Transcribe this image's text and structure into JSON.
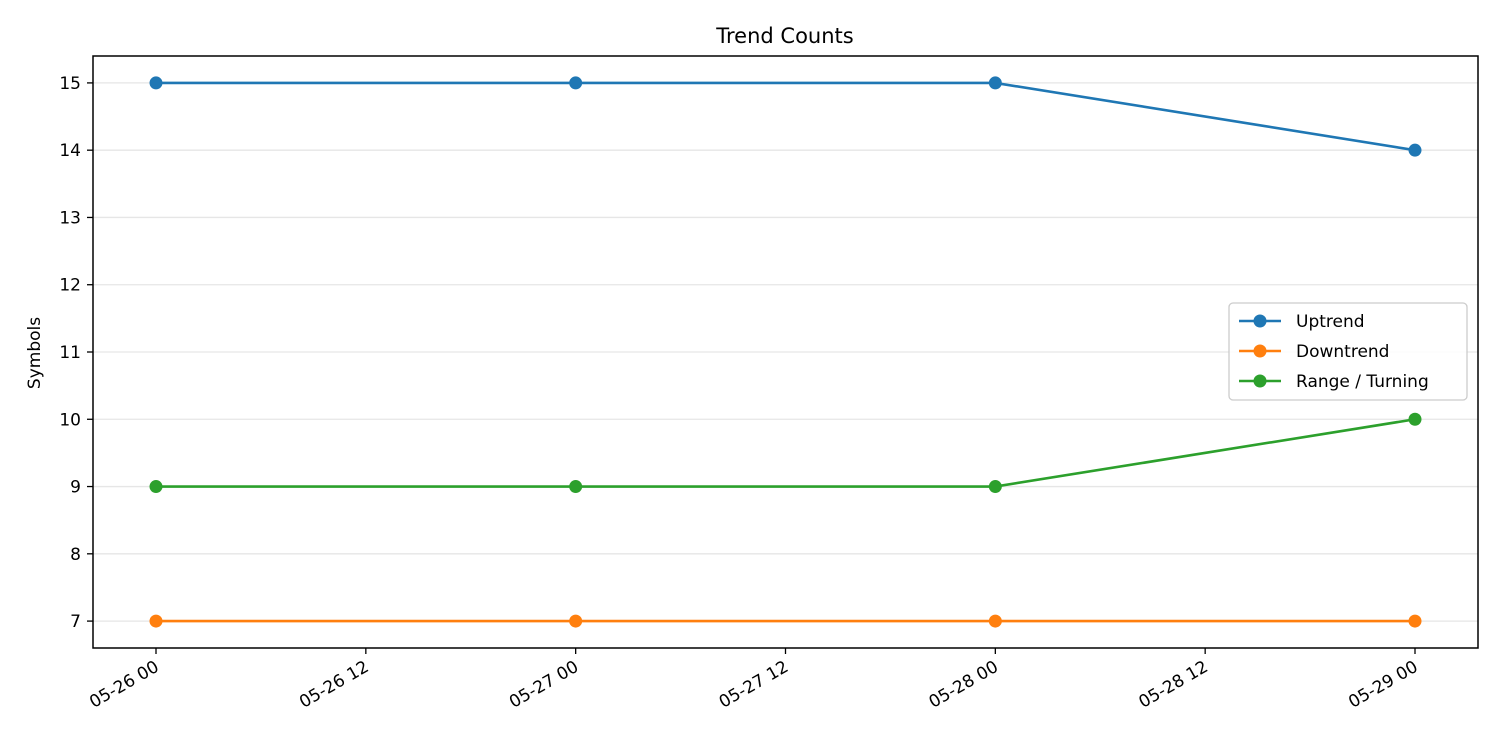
{
  "chart_data": {
    "type": "line",
    "title": "Trend Counts",
    "xlabel": "",
    "ylabel": "Symbols",
    "x": [
      "05-26 00",
      "05-27 00",
      "05-28 00",
      "05-29 00"
    ],
    "x_ticks": [
      "05-26 00",
      "05-26 12",
      "05-27 00",
      "05-27 12",
      "05-28 00",
      "05-28 12",
      "05-29 00"
    ],
    "y_ticks": [
      7,
      8,
      9,
      10,
      11,
      12,
      13,
      14,
      15
    ],
    "ylim": [
      6.6,
      15.4
    ],
    "grid": "horizontal",
    "legend_position": "center-right",
    "series": [
      {
        "name": "Uptrend",
        "color": "#1f77b4",
        "values": [
          15,
          15,
          15,
          14
        ]
      },
      {
        "name": "Downtrend",
        "color": "#ff7f0e",
        "values": [
          7,
          7,
          7,
          7
        ]
      },
      {
        "name": "Range / Turning",
        "color": "#2ca02c",
        "values": [
          9,
          9,
          9,
          10
        ]
      }
    ]
  }
}
